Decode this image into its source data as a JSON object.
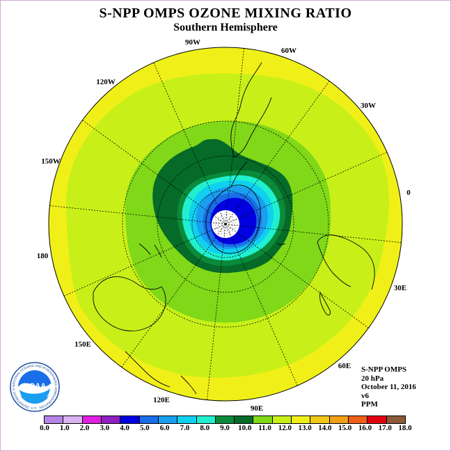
{
  "header": {
    "title": "S-NPP OMPS OZONE MIXING RATIO",
    "subtitle": "Southern Hemisphere"
  },
  "info": {
    "instrument": "S-NPP OMPS",
    "level": "20 hPa",
    "date": "October 11, 2016",
    "version": "v6",
    "units": "PPM"
  },
  "longitude_labels": [
    "90W",
    "60W",
    "30W",
    "0",
    "30E",
    "60E",
    "90E",
    "120E",
    "150E",
    "180",
    "150W",
    "120W"
  ],
  "colorbar": {
    "ticks": [
      "0.0",
      "1.0",
      "2.0",
      "3.0",
      "4.0",
      "5.0",
      "6.0",
      "7.0",
      "8.0",
      "9.0",
      "10.0",
      "11.0",
      "12.0",
      "13.0",
      "14.0",
      "15.0",
      "16.0",
      "17.0",
      "18.0"
    ],
    "colors": [
      "#b784e8",
      "#d8b4f0",
      "#e020e0",
      "#9020c0",
      "#0000e0",
      "#1a6ee8",
      "#1a9ef0",
      "#10d0f0",
      "#20f0d0",
      "#0a8a3a",
      "#066a28",
      "#80d818",
      "#c8f018",
      "#f0f018",
      "#f0c818",
      "#f0a018",
      "#f06018",
      "#e00010",
      "#8a5a3a"
    ]
  },
  "logo": {
    "text": "NOAA",
    "ring_text": "NATIONAL OCEANIC AND ATMOSPHERIC ADMINISTRATION · U.S. DEPARTMENT OF COMMERCE"
  },
  "map_data": {
    "projection": "south polar stereographic",
    "hemisphere": "Southern",
    "field": "ozone mixing ratio",
    "min_region_value_ppm": 3.0,
    "max_region_value_ppm": 13.5
  }
}
